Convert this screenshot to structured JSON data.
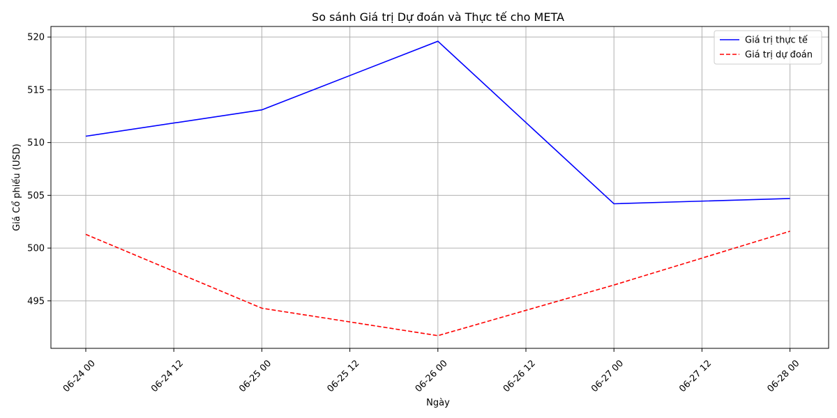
{
  "chart_data": {
    "type": "line",
    "title": "So sánh Giá trị Dự đoán và Thực tế cho META",
    "xlabel": "Ngày",
    "ylabel": "Giá Cổ phiếu (USD)",
    "x_ticks": [
      "06-24 00",
      "06-24 12",
      "06-25 00",
      "06-25 12",
      "06-26 00",
      "06-26 12",
      "06-27 00",
      "06-27 12",
      "06-28 00"
    ],
    "y_ticks": [
      "495",
      "500",
      "505",
      "510",
      "515",
      "520"
    ],
    "x": [
      "2024-06-24",
      "2024-06-25",
      "2024-06-26",
      "2024-06-27",
      "2024-06-28"
    ],
    "ylim": [
      490.5,
      521
    ],
    "grid": true,
    "legend_position": "top-right",
    "series": [
      {
        "name": "Giá trị thực tế",
        "values": [
          510.6,
          513.1,
          519.6,
          504.2,
          504.7
        ],
        "color": "#0000ff",
        "style": "solid"
      },
      {
        "name": "Giá trị dự đoán",
        "values": [
          501.3,
          494.3,
          491.7,
          496.5,
          501.6
        ],
        "color": "#ff0000",
        "style": "dashed"
      }
    ]
  }
}
